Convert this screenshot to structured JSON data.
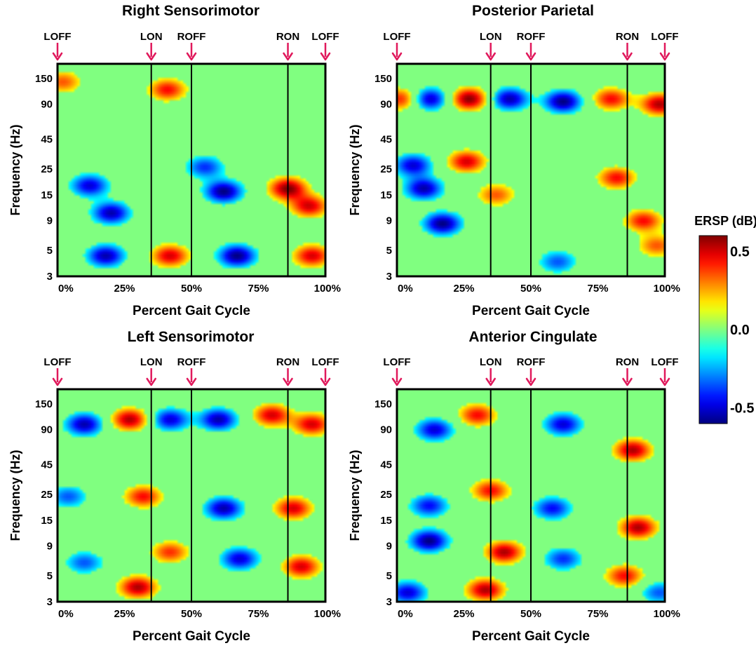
{
  "chart_data": [
    {
      "type": "heatmap",
      "title": "Right Sensorimotor",
      "xlabel": "Percent Gait Cycle",
      "ylabel": "Frequency (Hz)",
      "x_ticks": [
        "0%",
        "25%",
        "50%",
        "75%",
        "100%"
      ],
      "y_ticks": [
        "3",
        "5",
        "9",
        "15",
        "25",
        "45",
        "90",
        "150"
      ],
      "y_scale": "log",
      "xlim": [
        0,
        100
      ],
      "ylim": [
        3,
        200
      ],
      "gait_events": [
        {
          "label": "LOFF",
          "x": 0
        },
        {
          "label": "LON",
          "x": 35
        },
        {
          "label": "ROFF",
          "x": 50
        },
        {
          "label": "RON",
          "x": 86
        },
        {
          "label": "LOFF",
          "x": 100
        }
      ],
      "blobs": [
        {
          "x": 20,
          "y": 10.5,
          "v": -0.55
        },
        {
          "x": 12,
          "y": 18,
          "v": -0.5
        },
        {
          "x": 18,
          "y": 4.5,
          "v": -0.55
        },
        {
          "x": 42,
          "y": 4.5,
          "v": 0.5
        },
        {
          "x": 62,
          "y": 16,
          "v": -0.6
        },
        {
          "x": 67,
          "y": 4.5,
          "v": -0.6
        },
        {
          "x": 86,
          "y": 17,
          "v": 0.6
        },
        {
          "x": 94,
          "y": 12,
          "v": 0.5
        },
        {
          "x": 95,
          "y": 4.5,
          "v": 0.5
        },
        {
          "x": 41,
          "y": 120,
          "v": 0.45
        },
        {
          "x": 2,
          "y": 140,
          "v": 0.35
        },
        {
          "x": 55,
          "y": 26,
          "v": -0.4
        }
      ]
    },
    {
      "type": "heatmap",
      "title": "Posterior Parietal",
      "xlabel": "Percent Gait Cycle",
      "ylabel": "Frequency (Hz)",
      "x_ticks": [
        "0%",
        "25%",
        "50%",
        "75%",
        "100%"
      ],
      "y_ticks": [
        "3",
        "5",
        "9",
        "15",
        "25",
        "45",
        "90",
        "150"
      ],
      "y_scale": "log",
      "xlim": [
        0,
        100
      ],
      "ylim": [
        3,
        200
      ],
      "gait_events": [
        {
          "label": "LOFF",
          "x": 0
        },
        {
          "label": "LON",
          "x": 35
        },
        {
          "label": "ROFF",
          "x": 50
        },
        {
          "label": "RON",
          "x": 86
        },
        {
          "label": "LOFF",
          "x": 100
        }
      ],
      "blobs": [
        {
          "x": 2,
          "y": 100,
          "v": 0.45
        },
        {
          "x": 12,
          "y": 100,
          "v": -0.55
        },
        {
          "x": 27,
          "y": 100,
          "v": 0.6
        },
        {
          "x": 42,
          "y": 100,
          "v": -0.55
        },
        {
          "x": 62,
          "y": 95,
          "v": -0.6
        },
        {
          "x": 80,
          "y": 100,
          "v": 0.45
        },
        {
          "x": 98,
          "y": 90,
          "v": 0.55
        },
        {
          "x": 10,
          "y": 17,
          "v": -0.55
        },
        {
          "x": 17,
          "y": 8.5,
          "v": -0.6
        },
        {
          "x": 6,
          "y": 27,
          "v": -0.5
        },
        {
          "x": 26,
          "y": 29,
          "v": 0.5
        },
        {
          "x": 60,
          "y": 4,
          "v": -0.35
        },
        {
          "x": 82,
          "y": 21,
          "v": 0.45
        },
        {
          "x": 92,
          "y": 9,
          "v": 0.45
        },
        {
          "x": 97,
          "y": 5.5,
          "v": 0.35
        },
        {
          "x": 37,
          "y": 15,
          "v": 0.35
        }
      ]
    },
    {
      "type": "heatmap",
      "title": "Left Sensorimotor",
      "xlabel": "Percent Gait Cycle",
      "ylabel": "Frequency (Hz)",
      "x_ticks": [
        "0%",
        "25%",
        "50%",
        "75%",
        "100%"
      ],
      "y_ticks": [
        "3",
        "5",
        "9",
        "15",
        "25",
        "45",
        "90",
        "150"
      ],
      "y_scale": "log",
      "xlim": [
        0,
        100
      ],
      "ylim": [
        3,
        200
      ],
      "gait_events": [
        {
          "label": "LOFF",
          "x": 0
        },
        {
          "label": "LON",
          "x": 35
        },
        {
          "label": "ROFF",
          "x": 50
        },
        {
          "label": "RON",
          "x": 86
        },
        {
          "label": "LOFF",
          "x": 100
        }
      ],
      "blobs": [
        {
          "x": 10,
          "y": 100,
          "v": -0.55
        },
        {
          "x": 27,
          "y": 110,
          "v": 0.55
        },
        {
          "x": 42,
          "y": 110,
          "v": -0.5
        },
        {
          "x": 60,
          "y": 110,
          "v": -0.55
        },
        {
          "x": 80,
          "y": 120,
          "v": 0.5
        },
        {
          "x": 95,
          "y": 100,
          "v": 0.5
        },
        {
          "x": 10,
          "y": 6.5,
          "v": -0.35
        },
        {
          "x": 30,
          "y": 4,
          "v": 0.55
        },
        {
          "x": 32,
          "y": 24,
          "v": 0.45
        },
        {
          "x": 62,
          "y": 19,
          "v": -0.55
        },
        {
          "x": 68,
          "y": 7,
          "v": -0.5
        },
        {
          "x": 88,
          "y": 19,
          "v": 0.5
        },
        {
          "x": 91,
          "y": 6,
          "v": 0.5
        },
        {
          "x": 42,
          "y": 8,
          "v": 0.4
        },
        {
          "x": 4,
          "y": 24,
          "v": -0.35
        }
      ]
    },
    {
      "type": "heatmap",
      "title": "Anterior Cingulate",
      "xlabel": "Percent Gait Cycle",
      "ylabel": "Frequency (Hz)",
      "x_ticks": [
        "0%",
        "25%",
        "50%",
        "75%",
        "100%"
      ],
      "y_ticks": [
        "3",
        "5",
        "9",
        "15",
        "25",
        "45",
        "90",
        "150"
      ],
      "y_scale": "log",
      "xlim": [
        0,
        100
      ],
      "ylim": [
        3,
        200
      ],
      "gait_events": [
        {
          "label": "LOFF",
          "x": 0
        },
        {
          "label": "LON",
          "x": 35
        },
        {
          "label": "ROFF",
          "x": 50
        },
        {
          "label": "RON",
          "x": 86
        },
        {
          "label": "LOFF",
          "x": 100
        }
      ],
      "blobs": [
        {
          "x": 12,
          "y": 10,
          "v": -0.6
        },
        {
          "x": 4,
          "y": 3.6,
          "v": -0.5
        },
        {
          "x": 12,
          "y": 20,
          "v": -0.45
        },
        {
          "x": 14,
          "y": 90,
          "v": -0.5
        },
        {
          "x": 30,
          "y": 120,
          "v": 0.45
        },
        {
          "x": 33,
          "y": 3.8,
          "v": 0.55
        },
        {
          "x": 40,
          "y": 8,
          "v": 0.55
        },
        {
          "x": 35,
          "y": 27,
          "v": 0.45
        },
        {
          "x": 62,
          "y": 100,
          "v": -0.5
        },
        {
          "x": 58,
          "y": 19,
          "v": -0.45
        },
        {
          "x": 62,
          "y": 7,
          "v": -0.4
        },
        {
          "x": 88,
          "y": 60,
          "v": 0.55
        },
        {
          "x": 90,
          "y": 13,
          "v": 0.55
        },
        {
          "x": 85,
          "y": 5,
          "v": 0.45
        },
        {
          "x": 98,
          "y": 3.6,
          "v": -0.35
        }
      ]
    }
  ],
  "colorbar": {
    "title": "ERSP (dB)",
    "min": -0.6,
    "max": 0.6,
    "ticks": [
      {
        "value": 0.5,
        "label": "0.5"
      },
      {
        "value": 0.0,
        "label": "0.0"
      },
      {
        "value": -0.5,
        "label": "-0.5"
      }
    ],
    "colormap": "jet"
  },
  "colors": {
    "event_arrow": "#e0195c",
    "event_line": "#000000",
    "background_zero": "#8ae874"
  }
}
